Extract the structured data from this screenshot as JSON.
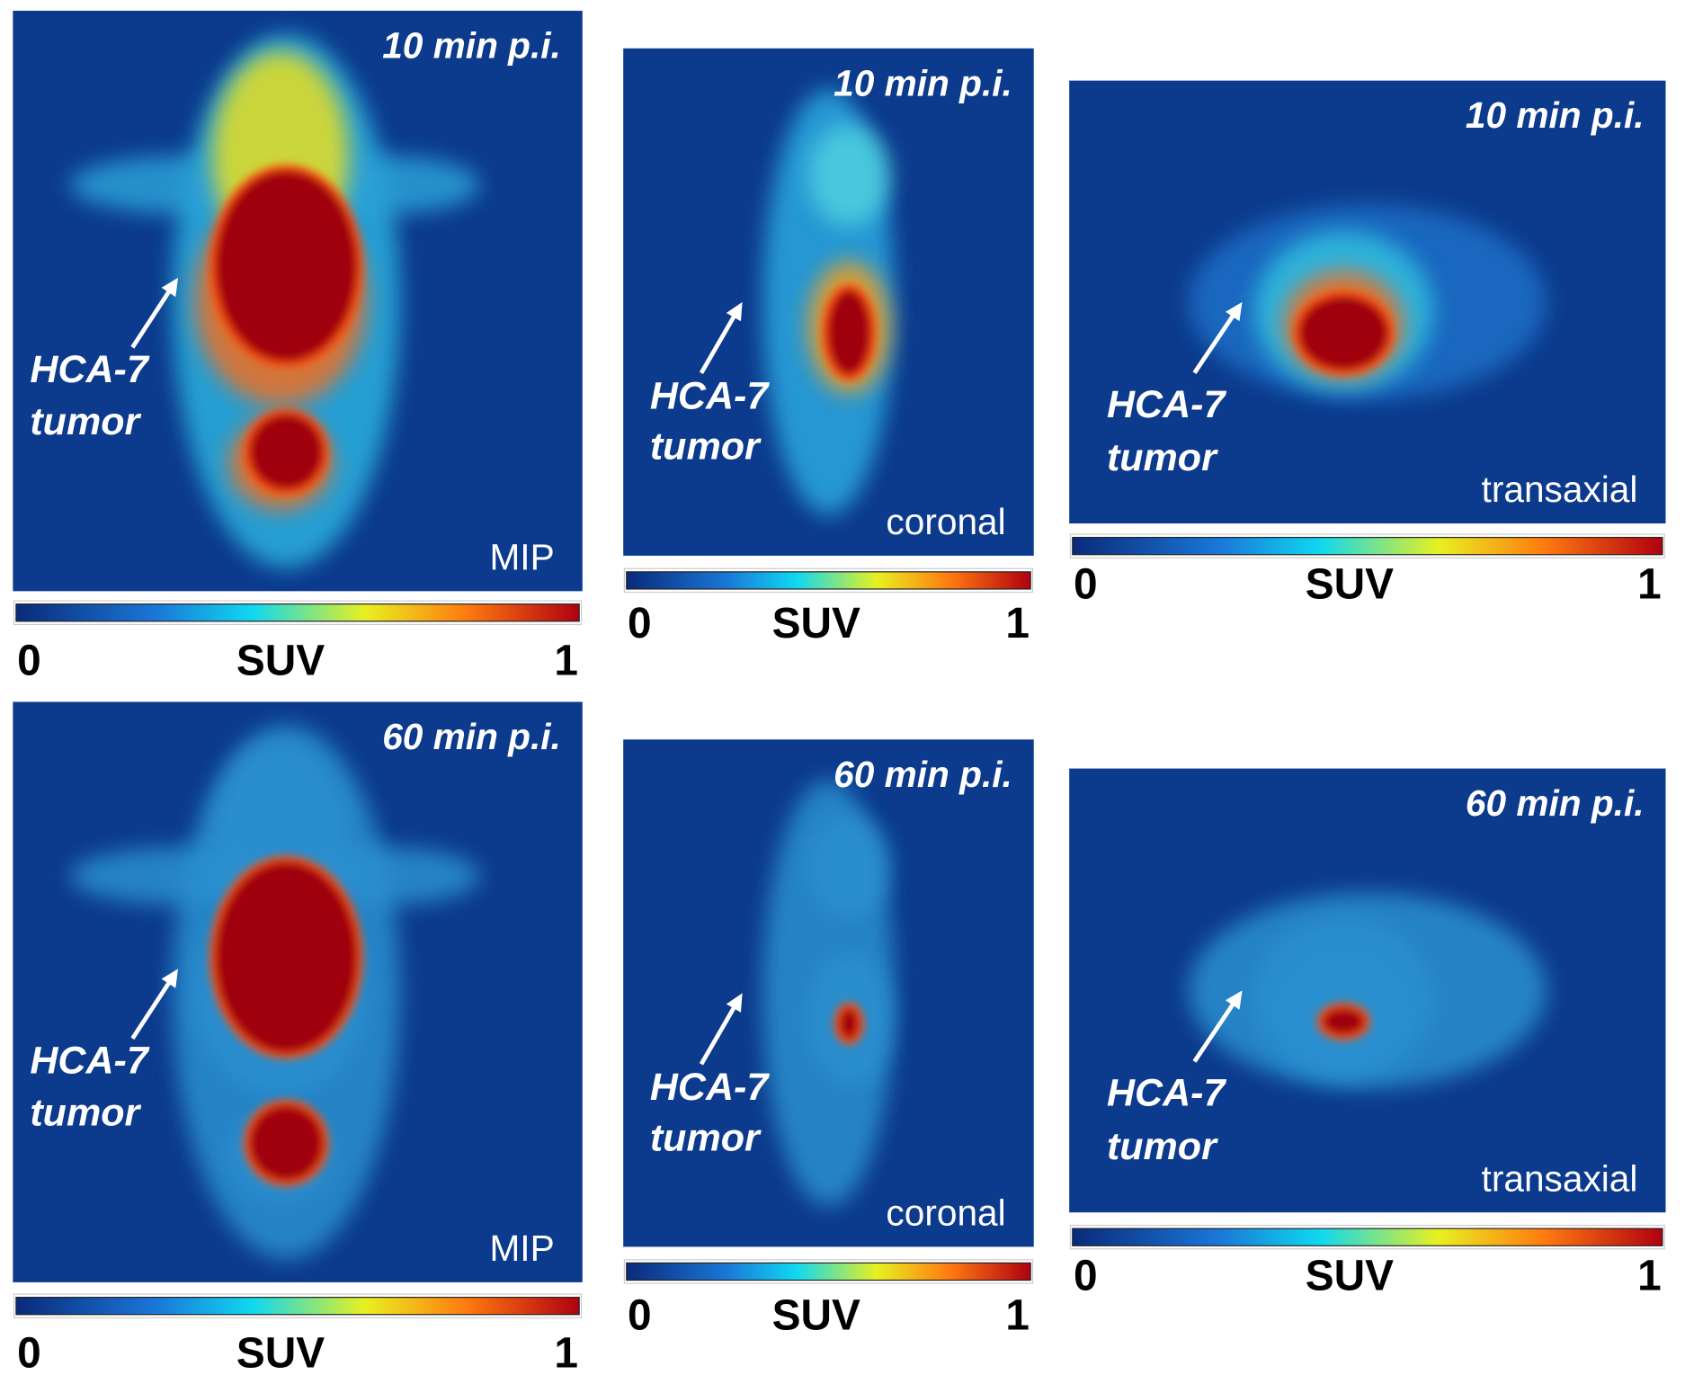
{
  "panels": [
    {
      "time": "10 min p.i.",
      "view": "MIP",
      "annotation": [
        "HCA-7",
        "tumor"
      ],
      "colorbar": {
        "min": "0",
        "label": "SUV",
        "max": "1"
      }
    },
    {
      "time": "10 min p.i.",
      "view": "coronal",
      "annotation": [
        "HCA-7",
        "tumor"
      ],
      "colorbar": {
        "min": "0",
        "label": "SUV",
        "max": "1"
      }
    },
    {
      "time": "10 min p.i.",
      "view": "transaxial",
      "annotation": [
        "HCA-7",
        "tumor"
      ],
      "colorbar": {
        "min": "0",
        "label": "SUV",
        "max": "1"
      }
    },
    {
      "time": "60 min p.i.",
      "view": "MIP",
      "annotation": [
        "HCA-7",
        "tumor"
      ],
      "colorbar": {
        "min": "0",
        "label": "SUV",
        "max": "1"
      }
    },
    {
      "time": "60 min p.i.",
      "view": "coronal",
      "annotation": [
        "HCA-7",
        "tumor"
      ],
      "colorbar": {
        "min": "0",
        "label": "SUV",
        "max": "1"
      }
    },
    {
      "time": "60 min p.i.",
      "view": "transaxial",
      "annotation": [
        "HCA-7",
        "tumor"
      ],
      "colorbar": {
        "min": "0",
        "label": "SUV",
        "max": "1"
      }
    }
  ]
}
